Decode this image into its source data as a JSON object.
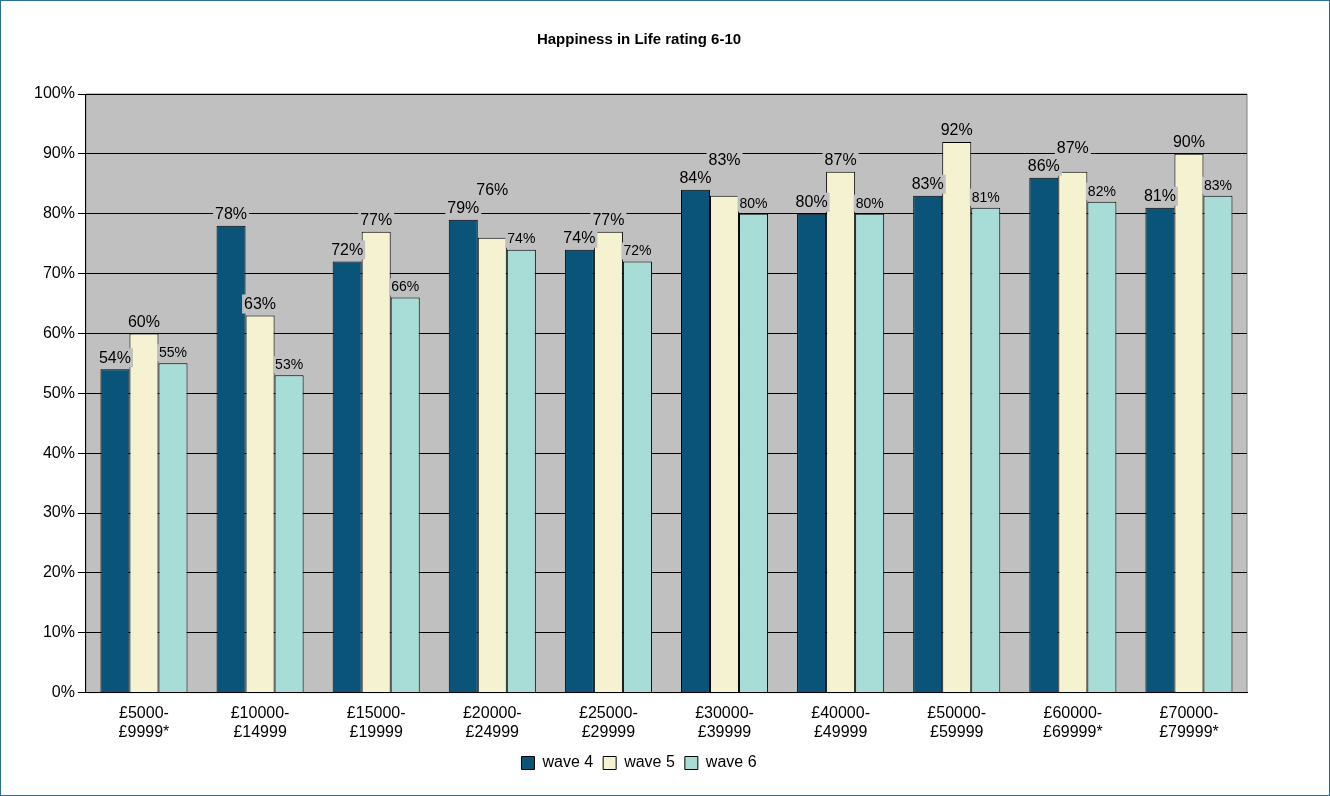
{
  "chart_data": {
    "type": "bar",
    "title": "Happiness in Life rating 6-10",
    "categories": [
      "£5000-£9999*",
      "£10000-£14999",
      "£15000-£19999",
      "£20000-£24999",
      "£25000-£29999",
      "£30000-£39999",
      "£40000-£49999",
      "£50000-£59999",
      "£60000-£69999*",
      "£70000-£79999*"
    ],
    "series": [
      {
        "name": "wave 4",
        "color": "#0b5479",
        "values": [
          54,
          78,
          72,
          79,
          74,
          84,
          80,
          83,
          86,
          81
        ],
        "value_labels": [
          "54%",
          "78%",
          "72%",
          "79%",
          "74%",
          "84%",
          "80%",
          "83%",
          "86%",
          "81%"
        ]
      },
      {
        "name": "wave 5",
        "color": "#f5f2d2",
        "values": [
          60,
          63,
          77,
          76,
          77,
          83,
          87,
          92,
          87,
          90
        ],
        "value_labels": [
          "60%",
          "63%",
          "77%",
          "76%",
          "77%",
          "83%",
          "87%",
          "92%",
          "87%",
          "90%"
        ]
      },
      {
        "name": "wave 6",
        "color": "#a8dcd6",
        "values": [
          55,
          53,
          66,
          74,
          72,
          80,
          80,
          81,
          82,
          83
        ],
        "value_labels": [
          "55%",
          "53%",
          "66%",
          "74%",
          "72%",
          "80%",
          "80%",
          "81%",
          "82%",
          "83%"
        ]
      }
    ],
    "ylim": [
      0,
      100
    ],
    "yticks": [
      {
        "value": 0,
        "label": "0%"
      },
      {
        "value": 10,
        "label": "10%"
      },
      {
        "value": 20,
        "label": "20%"
      },
      {
        "value": 30,
        "label": "30%"
      },
      {
        "value": 40,
        "label": "40%"
      },
      {
        "value": 50,
        "label": "50%"
      },
      {
        "value": 60,
        "label": "60%"
      },
      {
        "value": 70,
        "label": "70%"
      },
      {
        "value": 80,
        "label": "80%"
      },
      {
        "value": 90,
        "label": "90%"
      },
      {
        "value": 100,
        "label": "100%"
      }
    ],
    "grid": "y",
    "legend": "bottom"
  }
}
